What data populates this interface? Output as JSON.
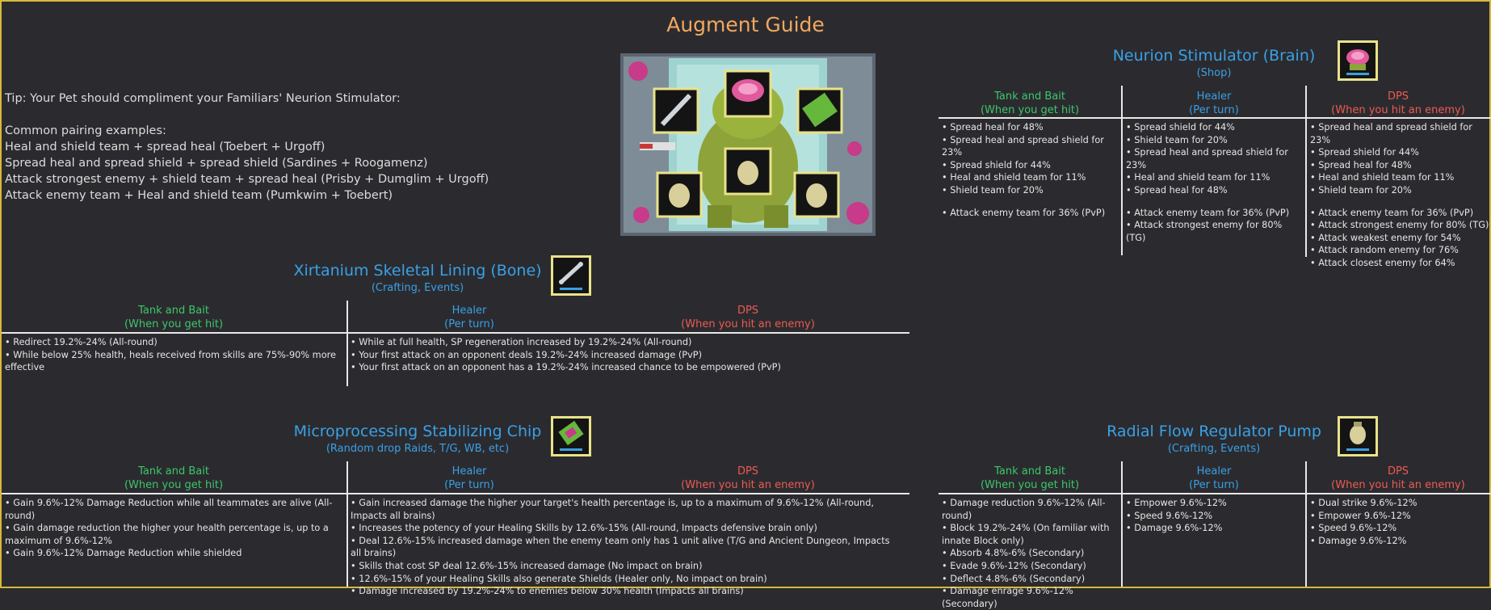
{
  "title": "Augment Guide",
  "tip": {
    "line1": "Tip: Your Pet should compliment your Familiars' Neurion Stimulator:",
    "examples_heading": "Common pairing examples:",
    "examples": [
      "Heal and shield team + spread heal (Toebert + Urgoff)",
      "Spread heal and spread shield + spread shield (Sardines + Roogamenz)",
      "Attack strongest enemy + shield team + spread heal (Prisby + Dumglim + Urgoff)",
      "Attack enemy team + Heal and shield team (Pumkwim + Toebert)"
    ]
  },
  "headers": {
    "tank": "Tank and Bait",
    "tank_sub": "(When you get hit)",
    "healer": "Healer",
    "healer_sub": "(Per turn)",
    "dps": "DPS",
    "dps_sub": "(When you hit an enemy)"
  },
  "neurion": {
    "title": "Neurion Stimulator (Brain)",
    "source": "(Shop)",
    "icon": "brain-icon",
    "tank": [
      "• Spread heal for 48%",
      "• Spread heal and spread shield for 23%",
      "• Spread shield for 44%",
      "• Heal and shield team for 11%",
      "• Shield team for 20%",
      "",
      "• Attack enemy team for 36% (PvP)"
    ],
    "healer": [
      "• Spread shield for 44%",
      "• Shield team for 20%",
      "• Spread heal and spread shield for 23%",
      "• Heal and shield team for 11%",
      "• Spread heal for 48%",
      "",
      "• Attack enemy team for 36% (PvP)",
      "• Attack strongest enemy for 80% (TG)"
    ],
    "dps": [
      "• Spread heal and spread shield for 23%",
      "• Spread shield for 44%",
      "• Spread heal for 48%",
      "• Heal and shield team for 11%",
      "• Shield team for 20%",
      "",
      "• Attack enemy team for 36% (PvP)",
      "• Attack strongest enemy for 80% (TG)",
      "• Attack weakest enemy for 54%",
      "• Attack random enemy for 76%",
      "• Attack closest enemy for 64%"
    ]
  },
  "bone": {
    "title": "Xirtanium Skeletal Lining (Bone)",
    "source": "(Crafting, Events)",
    "icon": "bone-icon",
    "tank": [
      "• Redirect 19.2%-24% (All-round)",
      "• While below 25% health, heals received from skills are 75%-90% more effective"
    ],
    "healer_dps": [
      "• While at full health, SP regeneration increased by 19.2%-24% (All-round)",
      "• Your first attack on an opponent deals 19.2%-24% increased damage (PvP)",
      "• Your first attack on an opponent has a 19.2%-24% increased chance to be empowered (PvP)"
    ]
  },
  "chip": {
    "title": "Microprocessing Stabilizing Chip",
    "source": "(Random drop Raids, T/G, WB, etc)",
    "icon": "chip-icon",
    "tank": [
      "• Gain 9.6%-12% Damage Reduction while all teammates are alive (All-round)",
      "• Gain damage reduction the higher your health percentage is, up to a maximum of 9.6%-12%",
      "• Gain 9.6%-12% Damage Reduction while shielded"
    ],
    "healer_dps": [
      "• Gain increased damage the higher your target's health percentage is, up to a maximum of 9.6%-12% (All-round, Impacts all brains)",
      "• Increases the potency of your Healing Skills by 12.6%-15% (All-round, Impacts defensive brain only)",
      "• Deal 12.6%-15% increased damage when the enemy team only has 1 unit alive (T/G and Ancient Dungeon, Impacts all brains)",
      "• Skills that cost SP deal 12.6%-15% increased damage (No impact on brain)",
      "• 12.6%-15% of your Healing Skills also generate Shields (Healer only, No impact on brain)",
      "• Damage increased by 19.2%-24% to enemies below 30% health (Impacts all brains)"
    ]
  },
  "pump": {
    "title": "Radial Flow Regulator Pump",
    "source": "(Crafting, Events)",
    "icon": "pump-icon",
    "tank": [
      "• Damage reduction 9.6%-12% (All-round)",
      "• Block 19.2%-24% (On familiar with innate Block only)",
      "• Absorb 4.8%-6% (Secondary)",
      "• Evade 9.6%-12% (Secondary)",
      "• Deflect 4.8%-6% (Secondary)",
      "• Damage enrage 9.6%-12% (Secondary)"
    ],
    "healer": [
      "• Empower 9.6%-12%",
      "• Speed 9.6%-12%",
      "• Damage 9.6%-12%"
    ],
    "dps": [
      "• Dual strike 9.6%-12%",
      "• Empower 9.6%-12%",
      "• Speed 9.6%-12%",
      "• Damage 9.6%-12%"
    ]
  },
  "colors": {
    "title": "#f0a860",
    "section": "#3aa0e6",
    "tank": "#3cc76a",
    "healer": "#3aa0e6",
    "dps": "#ee5a52",
    "frame": "#d9b83a"
  }
}
